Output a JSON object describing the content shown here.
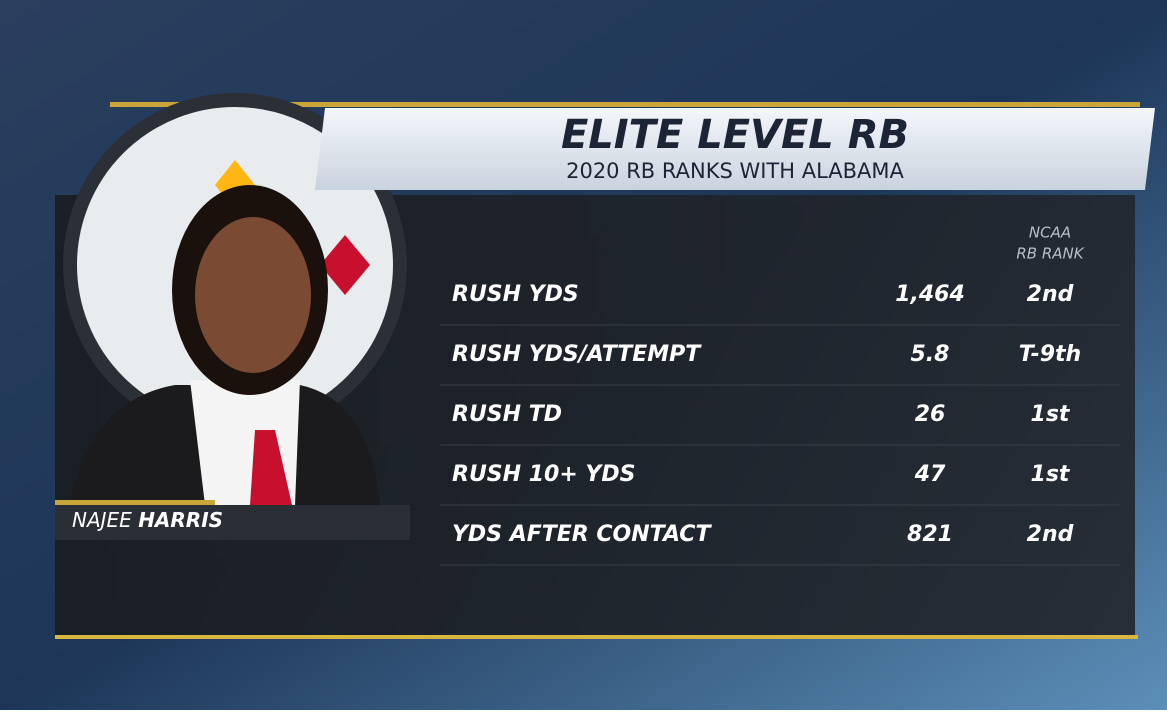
{
  "header": {
    "title": "ELITE LEVEL RB",
    "subtitle": "2020 RB RANKS WITH ALABAMA"
  },
  "player": {
    "first_name": "NAJEE",
    "last_name": "HARRIS"
  },
  "table": {
    "column_header": [
      "NCAA",
      "RB RANK"
    ],
    "rows": [
      [
        "RUSH YDS",
        "1,464",
        "2nd"
      ],
      [
        "RUSH YDS/ATTEMPT",
        "5.8",
        "T-9th"
      ],
      [
        "RUSH TD",
        "26",
        "1st"
      ],
      [
        "RUSH 10+ YDS",
        "47",
        "1st"
      ],
      [
        "YDS AFTER CONTACT",
        "821",
        "2nd"
      ]
    ]
  }
}
